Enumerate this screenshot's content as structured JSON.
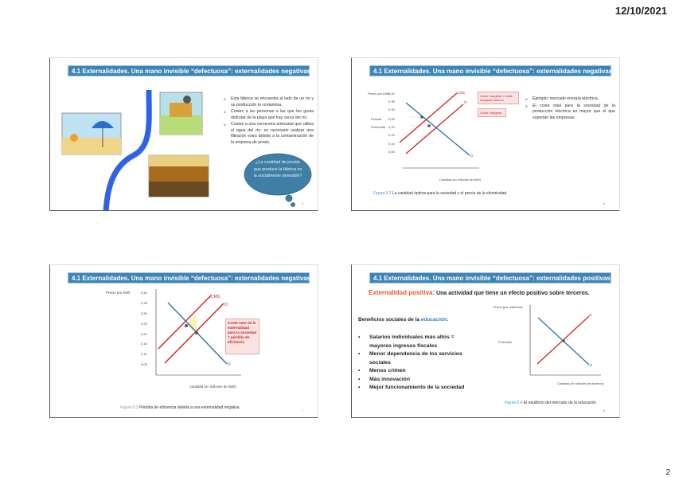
{
  "page": {
    "date": "12/10/2021",
    "number": "2"
  },
  "slides": [
    {
      "title": "4.1 Externalidades. Una mano invisible “defectuosa”: externalidades negativas",
      "bullets": [
        "Esta fábrica se encuentra al lado de un río y su producción lo contamina.",
        "Costes a las personas a las que les gusta disfrutar de la playa que hay cerca del río.",
        "Costes a una cervecera artesanal que utiliza el agua del río: es necesario realizar una filtración extra debido a la contaminación de la empresa de jersés."
      ],
      "cloud": "¿La cantidad de jerséis que produce la fábrica es la socialmente deseable?",
      "slide_number": "5"
    },
    {
      "title": "4.1 Externalidades. Una mano invisible “defectuosa”: externalidades negativas",
      "bullets": [
        "Ejemplo: mercado energía eléctrica.",
        "El coste total para la sociedad de la producción eléctrica es mayor que el que soportan las empresas."
      ],
      "callouts": [
        "Coste marginal = coste marginal externo",
        "Coste marginal"
      ],
      "caption_fig": "Figura 9.2",
      "caption": "La cantidad óptima para la sociedad y el precio de la electricidad",
      "slide_number": "6"
    },
    {
      "title": "4.1 Externalidades. Una mano invisible “defectuosa”: externalidades negativas",
      "callout": "Coste neto de la externalidad para la sociedad = pérdida de eficiencia",
      "caption_fig": "Figura 9.3",
      "caption": "Pérdida de eficiencia debida a una externalidad negativa",
      "slide_number": "7"
    },
    {
      "title": "4.1 Externalidades. Una mano invisible “defectuosa”: externalidades positivas",
      "def_term": "Externalidad positiva:",
      "def_text": "Una actividad que tiene un efecto positivo sobre terceros.",
      "benefits_lead": "Beneficios sociales de la ",
      "benefits_term": "educación",
      "benefits_colon": ":",
      "benefits": [
        "Salarios individuales más altos = mayores ingresos fiscales",
        "Menor dependencia de los servicios sociales",
        "Menos crimen",
        "Más innovación",
        "Mejor funcionamiento de la sociedad"
      ],
      "caption_fig": "Figura 9.4",
      "caption": "El equilibrio del mercado de la educación",
      "slide_number": "8"
    }
  ],
  "chart_data": [
    {
      "type": "line",
      "ylabel": "Precio por kWh",
      "xlabel": "Cantidad (en millones de kWh)",
      "series": [
        {
          "name": "CMS",
          "color": "#cc2222"
        },
        {
          "name": "O",
          "color": "#cc2222"
        },
        {
          "name": "D",
          "color": "#2a6fb0"
        }
      ],
      "yticks": [
        "0,40",
        "0,35",
        "0,30",
        "0,25",
        "0,20",
        "0,15",
        "0,10",
        "0,05"
      ],
      "yannot": [
        "Psocial",
        "Pmercado"
      ]
    },
    {
      "type": "line",
      "ylabel": "Precio por kWh",
      "xlabel": "Cantidad (en millones de kWh)",
      "series": [
        {
          "name": "CMS",
          "color": "#cc2222"
        },
        {
          "name": "O",
          "color": "#cc2222"
        },
        {
          "name": "D",
          "color": "#2a6fb0"
        }
      ],
      "yticks": [
        "0,40",
        "0,35",
        "0,30",
        "0,25",
        "0,20",
        "0,15",
        "0,10",
        "0,05"
      ]
    },
    {
      "type": "line",
      "ylabel": "Precio (por matrícula)",
      "xlabel": "Cantidad (en millones de alumnos)",
      "series": [
        {
          "name": "O",
          "color": "#cc2222"
        },
        {
          "name": "D",
          "color": "#2a6fb0"
        }
      ],
      "yannot": [
        "Pmercado"
      ]
    }
  ],
  "colors": {
    "header": "#3d85b5",
    "accent_orange": "#e8552d",
    "accent_blue": "#2a7fc4",
    "cloud": "#3f7fa6"
  }
}
